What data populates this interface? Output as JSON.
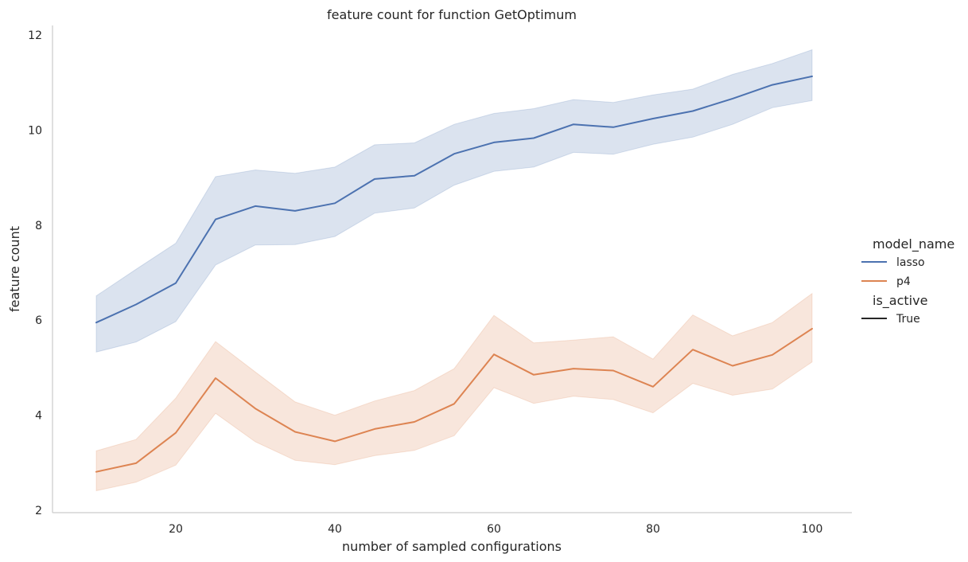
{
  "chart_data": {
    "type": "line",
    "title": "feature count for function GetOptimum",
    "xlabel": "number of sampled configurations",
    "ylabel": "feature count",
    "xlim": [
      4.5,
      105
    ],
    "ylim": [
      1.95,
      12.2
    ],
    "xticks": [
      20,
      40,
      60,
      80,
      100
    ],
    "yticks": [
      2,
      4,
      6,
      8,
      10,
      12
    ],
    "grid": false,
    "legend_placement": "right",
    "legend": {
      "hue_title": "model_name",
      "style_title": "is_active",
      "style_entries": [
        "True"
      ]
    },
    "x": [
      10,
      15,
      20,
      25,
      30,
      35,
      40,
      45,
      50,
      55,
      60,
      65,
      70,
      75,
      80,
      85,
      90,
      95,
      100
    ],
    "series": [
      {
        "name": "lasso",
        "color": "#4c72b0",
        "values": [
          5.95,
          6.33,
          6.78,
          8.12,
          8.4,
          8.3,
          8.46,
          8.97,
          9.04,
          9.5,
          9.74,
          9.83,
          10.12,
          10.06,
          10.24,
          10.4,
          10.66,
          10.95,
          11.13
        ],
        "ci_low": [
          5.33,
          5.54,
          5.97,
          7.16,
          7.58,
          7.59,
          7.76,
          8.25,
          8.36,
          8.84,
          9.13,
          9.22,
          9.53,
          9.49,
          9.7,
          9.85,
          10.12,
          10.47,
          10.62
        ],
        "ci_high": [
          6.51,
          7.07,
          7.62,
          9.02,
          9.16,
          9.09,
          9.22,
          9.69,
          9.73,
          10.12,
          10.35,
          10.45,
          10.64,
          10.58,
          10.74,
          10.86,
          11.17,
          11.4,
          11.69
        ]
      },
      {
        "name": "p4",
        "color": "#dd8452",
        "values": [
          2.81,
          2.99,
          3.63,
          4.78,
          4.14,
          3.65,
          3.45,
          3.71,
          3.86,
          4.24,
          5.28,
          4.85,
          4.98,
          4.94,
          4.6,
          5.38,
          5.04,
          5.27,
          5.82
        ],
        "ci_low": [
          2.41,
          2.59,
          2.95,
          4.04,
          3.44,
          3.05,
          2.96,
          3.15,
          3.26,
          3.57,
          4.58,
          4.25,
          4.4,
          4.33,
          4.05,
          4.67,
          4.42,
          4.55,
          5.12
        ],
        "ci_high": [
          3.25,
          3.49,
          4.36,
          5.55,
          4.91,
          4.28,
          4.0,
          4.3,
          4.52,
          4.98,
          6.1,
          5.52,
          5.58,
          5.65,
          5.18,
          6.11,
          5.67,
          5.95,
          6.56
        ]
      }
    ]
  }
}
